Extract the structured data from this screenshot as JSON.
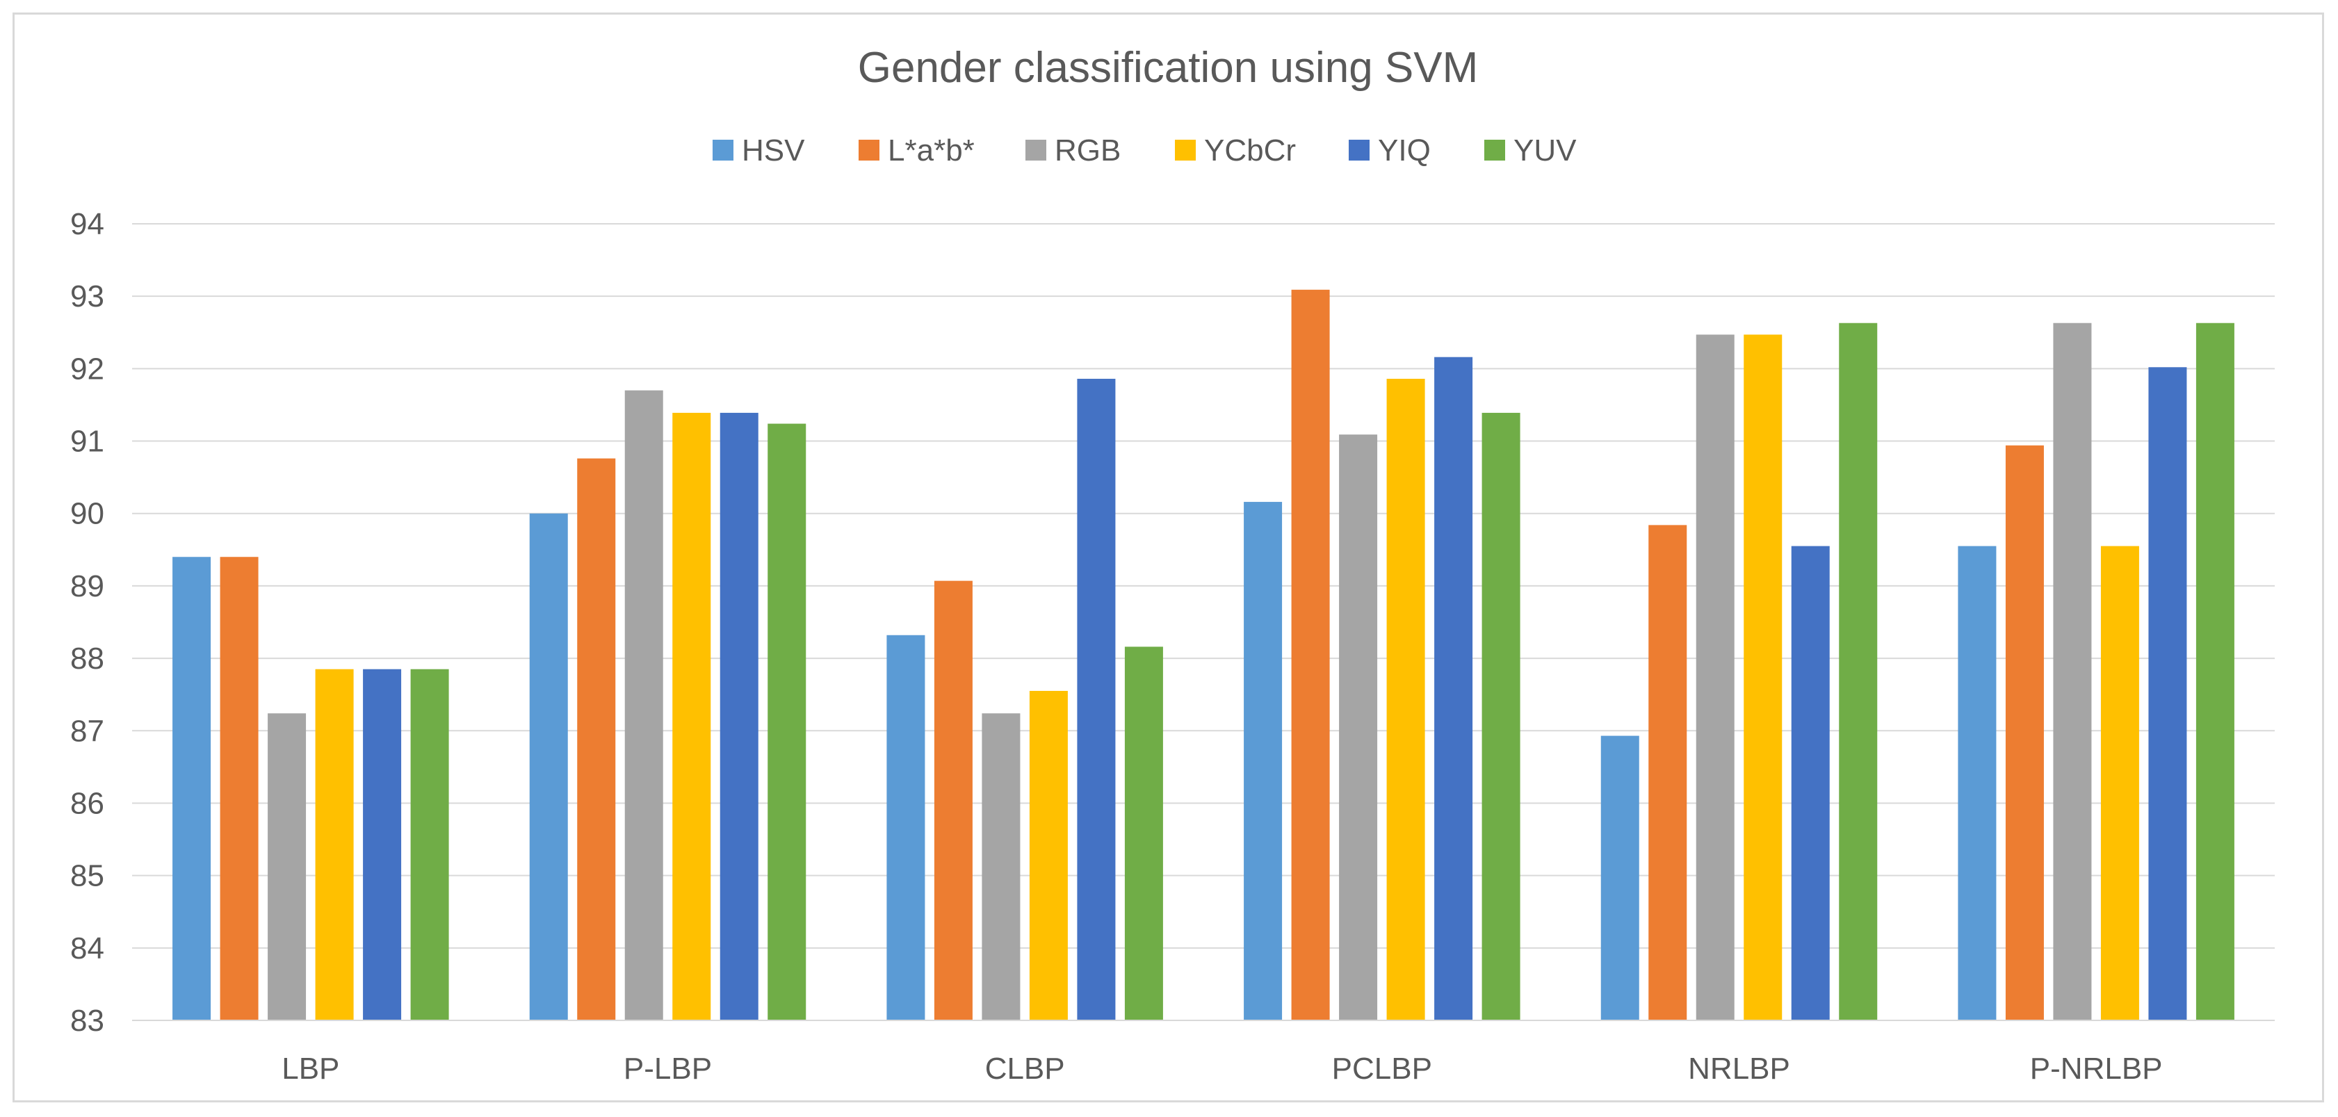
{
  "chart_data": {
    "type": "bar",
    "title": "Gender classification using SVM",
    "xlabel": "",
    "ylabel": "",
    "ylim": [
      83,
      94
    ],
    "yticks": [
      "83",
      "84",
      "85",
      "86",
      "87",
      "88",
      "89",
      "90",
      "91",
      "92",
      "93",
      "94"
    ],
    "grid": true,
    "legend_position": "top",
    "categories": [
      "LBP",
      "P-LBP",
      "CLBP",
      "PCLBP",
      "NRLBP",
      "P-NRLBP"
    ],
    "series": [
      {
        "name": "HSV",
        "color": "#5b9bd5",
        "values": [
          89.4,
          90.0,
          88.32,
          90.16,
          86.93,
          89.55
        ]
      },
      {
        "name": "L*a*b*",
        "color": "#ed7d31",
        "values": [
          89.4,
          90.76,
          89.07,
          93.09,
          89.84,
          90.94
        ]
      },
      {
        "name": "RGB",
        "color": "#a5a5a5",
        "values": [
          87.24,
          91.7,
          87.24,
          91.09,
          92.47,
          92.63
        ]
      },
      {
        "name": "YCbCr",
        "color": "#ffc000",
        "values": [
          87.85,
          91.39,
          87.55,
          91.86,
          92.47,
          89.55
        ]
      },
      {
        "name": "YIQ",
        "color": "#4472c4",
        "values": [
          87.85,
          91.39,
          91.86,
          92.16,
          89.55,
          92.02
        ]
      },
      {
        "name": "YUV",
        "color": "#70ad47",
        "values": [
          87.85,
          91.24,
          88.16,
          91.39,
          92.63,
          92.63
        ]
      }
    ]
  }
}
